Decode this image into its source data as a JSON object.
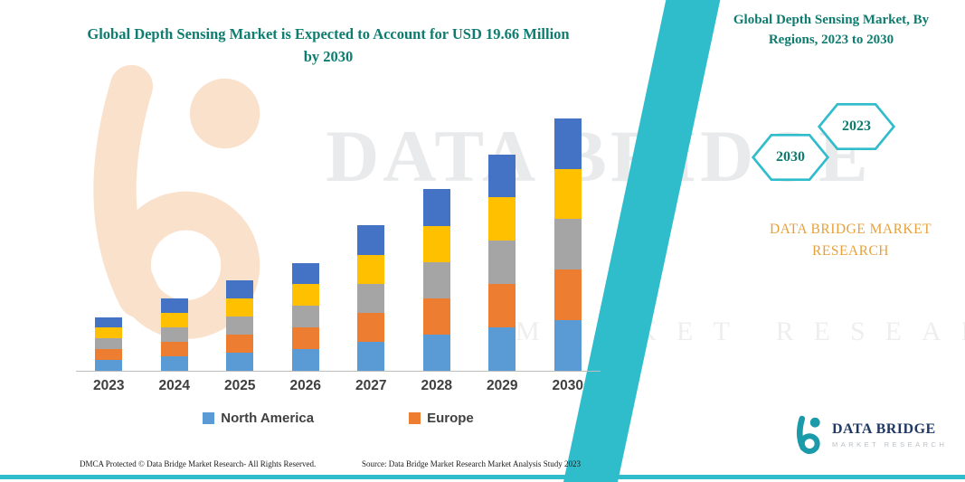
{
  "title": "Global Depth Sensing Market is Expected to Account for USD 19.66 Million by 2030",
  "side_panel": {
    "heading": "Global Depth Sensing Market, By Regions, 2023 to 2030",
    "hexagon_left": "2030",
    "hexagon_right": "2023",
    "brand_caption": "DATA BRIDGE MARKET RESEARCH"
  },
  "watermark": {
    "line1": "DATA BRIDGE",
    "line2": "MARKET RESEARCH"
  },
  "logo": {
    "title": "DATA BRIDGE",
    "subtitle": "MARKET RESEARCH"
  },
  "footer": {
    "left": "DMCA Protected © Data Bridge Market Research-  All Rights Reserved.",
    "source": "Source: Data Bridge Market Research  Market Analysis Study 2023"
  },
  "colors": {
    "teal_accent": "#2fbccb",
    "title_text": "#0e7c6f",
    "brand_orange": "#e7a13c",
    "logo_navy": "#203864"
  },
  "chart_data": {
    "type": "bar",
    "stacked": true,
    "title": "Global Depth Sensing Market is Expected to Account for USD 19.66 Million by 2030",
    "categories": [
      "2023",
      "2024",
      "2025",
      "2026",
      "2027",
      "2028",
      "2029",
      "2030"
    ],
    "series": [
      {
        "name": "North America",
        "color": "#5B9BD5",
        "values": [
          0.85,
          1.15,
          1.4,
          1.7,
          2.25,
          2.85,
          3.4,
          3.95
        ]
      },
      {
        "name": "Europe",
        "color": "#ED7D31",
        "values": [
          0.85,
          1.15,
          1.4,
          1.7,
          2.25,
          2.85,
          3.4,
          3.95
        ]
      },
      {
        "name": "",
        "color": "#A5A5A5",
        "values": [
          0.85,
          1.15,
          1.4,
          1.7,
          2.25,
          2.85,
          3.4,
          3.95
        ]
      },
      {
        "name": "",
        "color": "#FFC000",
        "values": [
          0.85,
          1.15,
          1.4,
          1.7,
          2.25,
          2.85,
          3.4,
          3.9
        ]
      },
      {
        "name": "",
        "color": "#4472C4",
        "values": [
          0.8,
          1.1,
          1.4,
          1.6,
          2.3,
          2.9,
          3.3,
          3.91
        ]
      }
    ],
    "legend": [
      {
        "label": "North America",
        "color": "#5B9BD5"
      },
      {
        "label": "Europe",
        "color": "#ED7D31"
      }
    ],
    "estimated_totals_usd_million": [
      4.2,
      5.7,
      7.0,
      8.4,
      11.3,
      14.3,
      16.9,
      19.66
    ],
    "ylim": [
      0,
      20
    ],
    "grid": false,
    "legend_position": "bottom"
  }
}
